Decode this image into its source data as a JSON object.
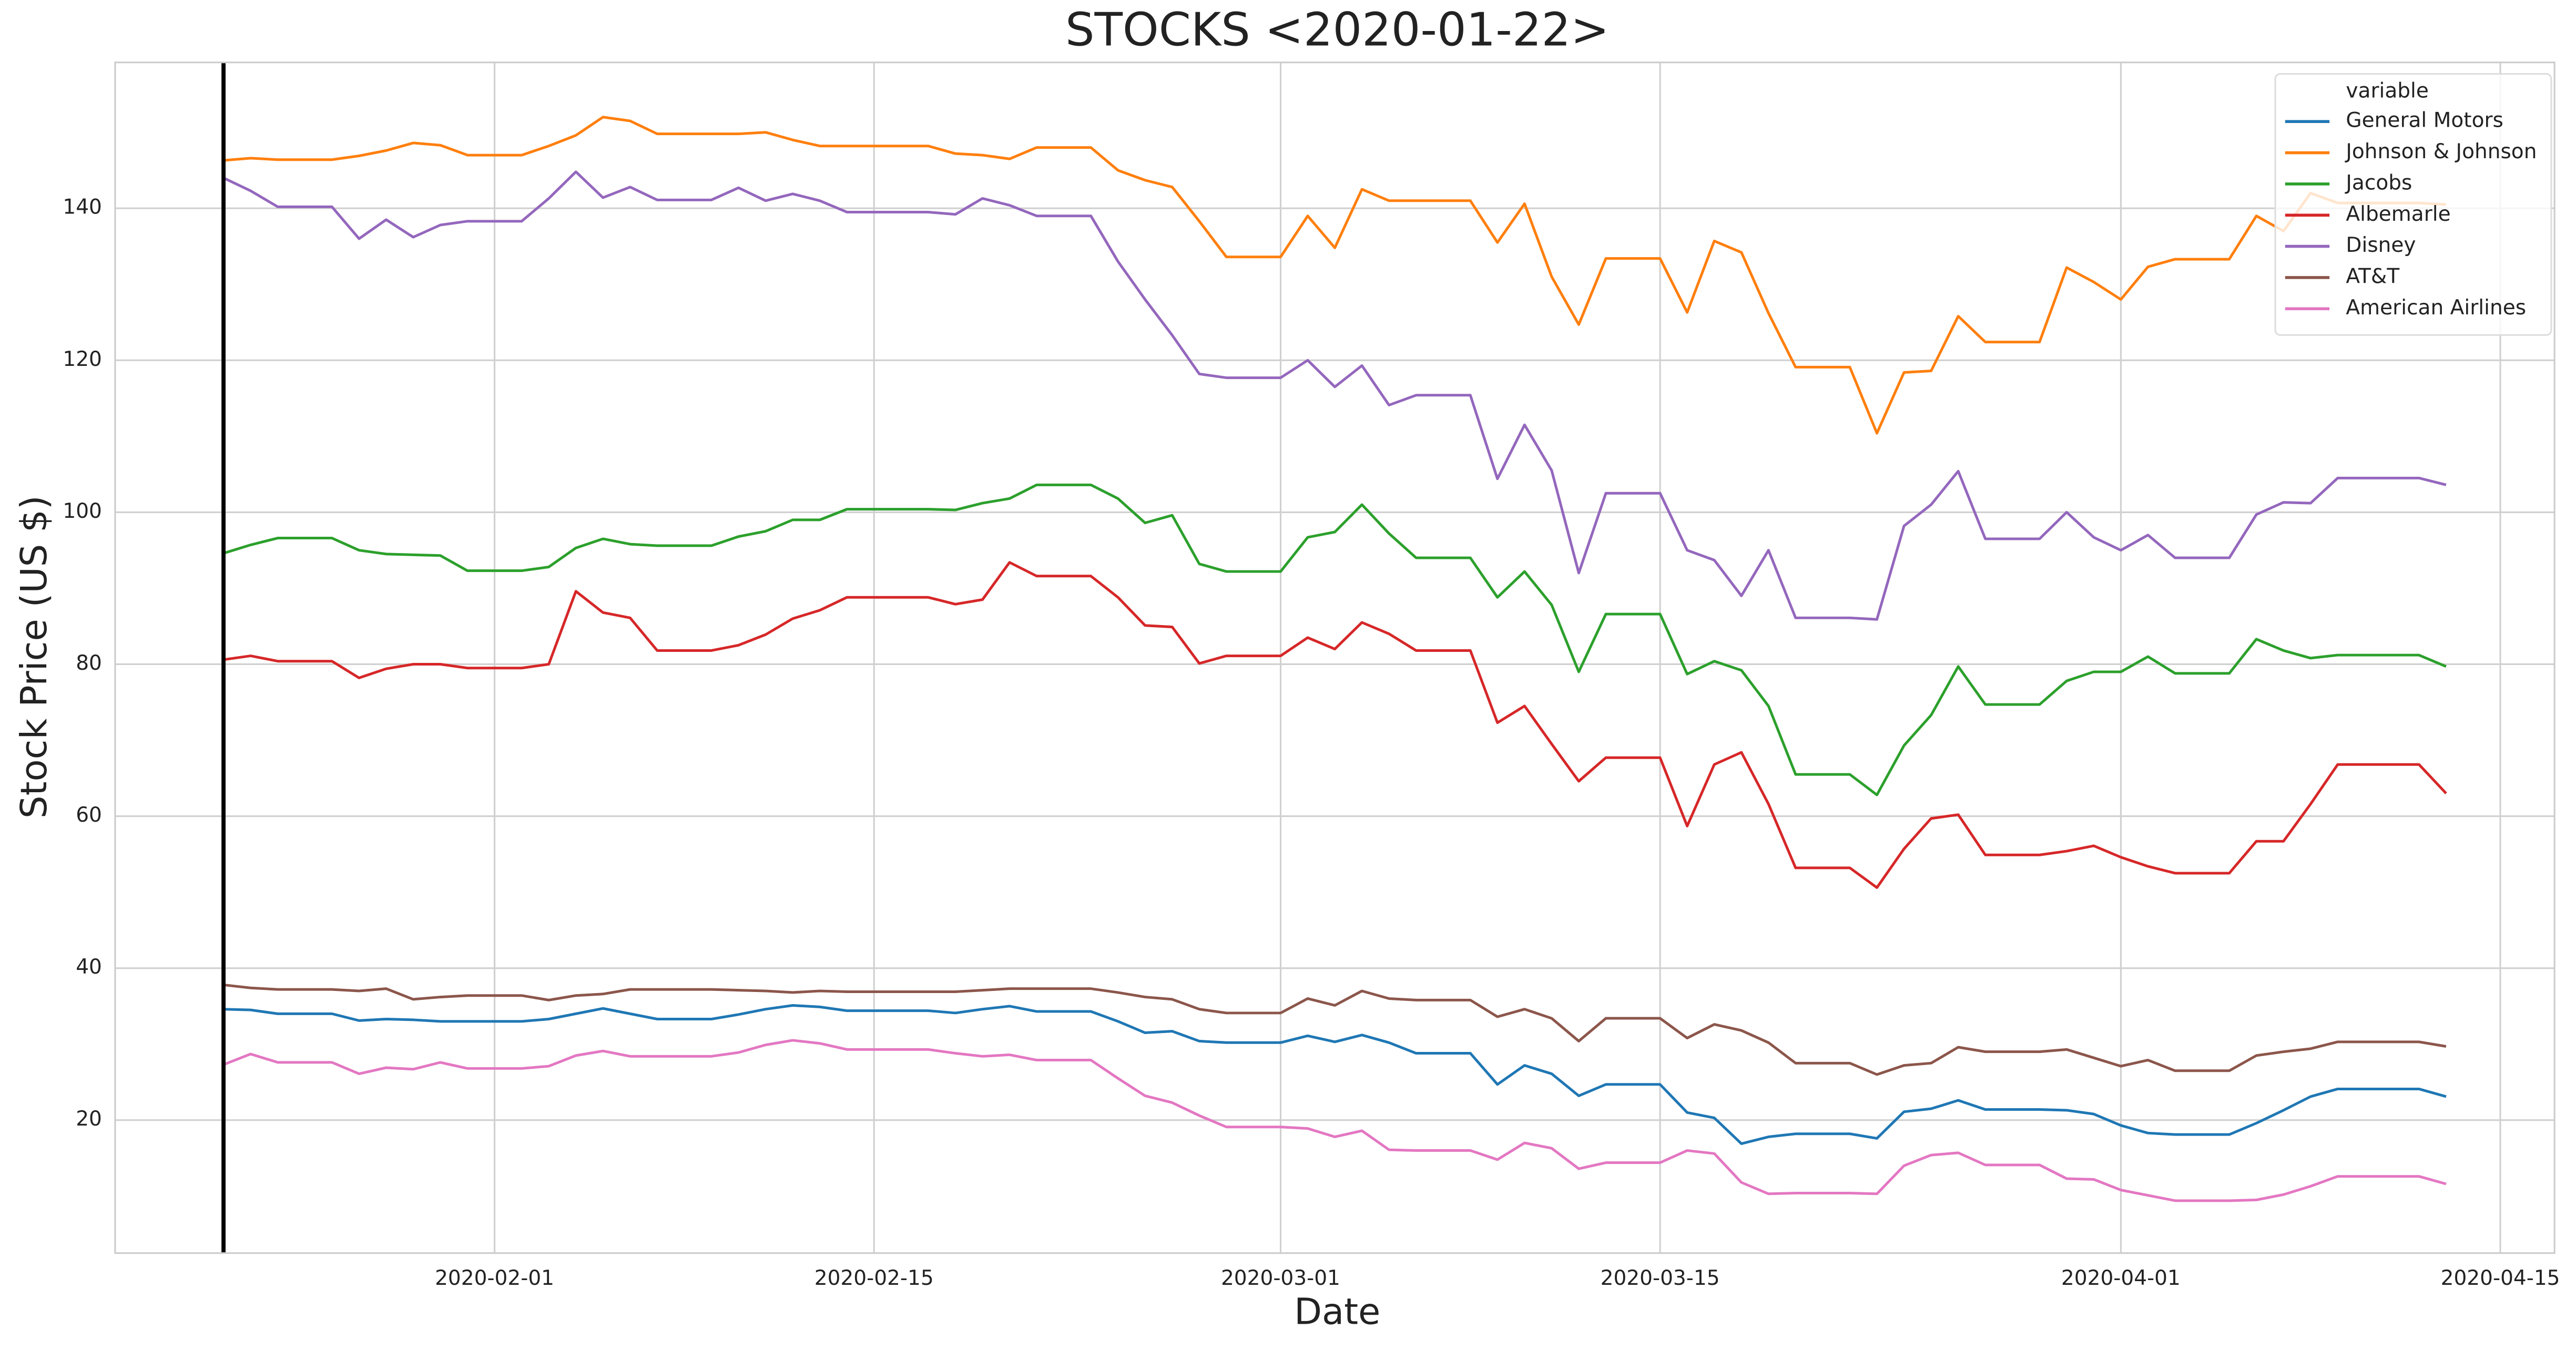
{
  "chart_data": {
    "type": "line",
    "title": "STOCKS <2020-01-22>",
    "xlabel": "Date",
    "ylabel": "Stock Price (US $)",
    "vline": "2020-01-22",
    "legend_title": "variable",
    "legend": "upper right",
    "grid": true,
    "xlim": [
      "2020-01-18",
      "2020-04-17"
    ],
    "xticks": [
      "2020-02-01",
      "2020-02-15",
      "2020-03-01",
      "2020-03-15",
      "2020-04-01",
      "2020-04-15"
    ],
    "ylim": [
      2.5,
      159.2
    ],
    "yticks": [
      20,
      40,
      60,
      80,
      100,
      120,
      140
    ],
    "x": [
      "2020-01-22",
      "2020-01-23",
      "2020-01-24",
      "2020-01-25",
      "2020-01-26",
      "2020-01-27",
      "2020-01-28",
      "2020-01-29",
      "2020-01-30",
      "2020-01-31",
      "2020-02-01",
      "2020-02-02",
      "2020-02-03",
      "2020-02-04",
      "2020-02-05",
      "2020-02-06",
      "2020-02-07",
      "2020-02-08",
      "2020-02-09",
      "2020-02-10",
      "2020-02-11",
      "2020-02-12",
      "2020-02-13",
      "2020-02-14",
      "2020-02-15",
      "2020-02-16",
      "2020-02-17",
      "2020-02-18",
      "2020-02-19",
      "2020-02-20",
      "2020-02-21",
      "2020-02-22",
      "2020-02-23",
      "2020-02-24",
      "2020-02-25",
      "2020-02-26",
      "2020-02-27",
      "2020-02-28",
      "2020-02-29",
      "2020-03-01",
      "2020-03-02",
      "2020-03-03",
      "2020-03-04",
      "2020-03-05",
      "2020-03-06",
      "2020-03-07",
      "2020-03-08",
      "2020-03-09",
      "2020-03-10",
      "2020-03-11",
      "2020-03-12",
      "2020-03-13",
      "2020-03-14",
      "2020-03-15",
      "2020-03-16",
      "2020-03-17",
      "2020-03-18",
      "2020-03-19",
      "2020-03-20",
      "2020-03-21",
      "2020-03-22",
      "2020-03-23",
      "2020-03-24",
      "2020-03-25",
      "2020-03-26",
      "2020-03-27",
      "2020-03-28",
      "2020-03-29",
      "2020-03-30",
      "2020-03-31",
      "2020-04-01",
      "2020-04-02",
      "2020-04-03",
      "2020-04-04",
      "2020-04-05",
      "2020-04-06",
      "2020-04-07",
      "2020-04-08",
      "2020-04-09",
      "2020-04-10",
      "2020-04-11",
      "2020-04-12",
      "2020-04-13"
    ],
    "series": [
      {
        "name": "General Motors",
        "color": "#1f77b4",
        "values": [
          34.6,
          34.5,
          34,
          34,
          34,
          33.1,
          33.3,
          33.2,
          33,
          33,
          33,
          33,
          33.3,
          34,
          34.7,
          34,
          33.3,
          33.3,
          33.3,
          33.9,
          34.6,
          35.1,
          34.9,
          34.4,
          34.4,
          34.4,
          34.4,
          34.1,
          34.6,
          35,
          34.3,
          34.3,
          34.3,
          33,
          31.5,
          31.7,
          30.4,
          30.2,
          30.2,
          30.2,
          31.1,
          30.3,
          31.2,
          30.2,
          28.8,
          28.8,
          28.8,
          24.7,
          27.2,
          26.1,
          23.2,
          24.7,
          24.7,
          24.7,
          21,
          20.3,
          16.9,
          17.8,
          18.2,
          18.2,
          18.2,
          17.6,
          21.1,
          21.5,
          22.6,
          21.4,
          21.4,
          21.4,
          21.3,
          20.8,
          19.3,
          18.3,
          18.1,
          18.1,
          18.1,
          19.6,
          21.3,
          23.1,
          24.1,
          24.1,
          24.1,
          24.1,
          23.1
        ]
      },
      {
        "name": "Johnson & Johnson",
        "color": "#ff7f0e",
        "values": [
          146.3,
          146.6,
          146.4,
          146.4,
          146.4,
          146.9,
          147.6,
          148.6,
          148.3,
          147,
          147,
          147,
          148.2,
          149.6,
          152,
          151.5,
          149.8,
          149.8,
          149.8,
          149.8,
          150,
          149,
          148.2,
          148.2,
          148.2,
          148.2,
          148.2,
          147.2,
          147,
          146.5,
          148,
          148,
          148,
          145,
          143.7,
          142.8,
          138.3,
          133.6,
          133.6,
          133.6,
          139,
          134.8,
          142.5,
          141,
          141,
          141,
          141,
          135.5,
          140.6,
          131,
          124.7,
          133.4,
          133.4,
          133.4,
          126.3,
          135.7,
          134.2,
          126.2,
          119.1,
          119.1,
          119.1,
          110.4,
          118.4,
          118.6,
          125.8,
          122.4,
          122.4,
          122.4,
          132.2,
          130.3,
          128,
          132.3,
          133.3,
          133.3,
          133.3,
          139,
          137,
          142,
          140.7,
          140.7,
          140.7,
          140.7,
          140.5
        ]
      },
      {
        "name": "Jacobs",
        "color": "#2ca02c",
        "values": [
          94.6,
          95.7,
          96.6,
          96.6,
          96.6,
          95,
          94.5,
          94.4,
          94.3,
          92.3,
          92.3,
          92.3,
          92.8,
          95.3,
          96.5,
          95.8,
          95.6,
          95.6,
          95.6,
          96.8,
          97.5,
          99,
          99,
          100.4,
          100.4,
          100.4,
          100.4,
          100.3,
          101.2,
          101.8,
          103.6,
          103.6,
          103.6,
          101.8,
          98.6,
          99.6,
          93.2,
          92.2,
          92.2,
          92.2,
          96.7,
          97.4,
          101,
          97.2,
          94,
          94,
          94,
          88.8,
          92.2,
          87.8,
          79,
          86.6,
          86.6,
          86.6,
          78.7,
          80.4,
          79.2,
          74.5,
          65.5,
          65.5,
          65.5,
          62.8,
          69.3,
          73.3,
          79.7,
          74.7,
          74.7,
          74.7,
          77.8,
          79,
          79,
          81,
          78.8,
          78.8,
          78.8,
          83.3,
          81.8,
          80.8,
          81.2,
          81.2,
          81.2,
          81.2,
          79.7
        ]
      },
      {
        "name": "Albemarle",
        "color": "#d62728",
        "values": [
          80.6,
          81.1,
          80.4,
          80.4,
          80.4,
          78.2,
          79.4,
          80,
          80,
          79.5,
          79.5,
          79.5,
          80,
          89.6,
          86.8,
          86.1,
          81.8,
          81.8,
          81.8,
          82.5,
          83.9,
          86,
          87.1,
          88.8,
          88.8,
          88.8,
          88.8,
          87.9,
          88.5,
          93.4,
          91.6,
          91.6,
          91.6,
          88.8,
          85.1,
          84.9,
          80.1,
          81.1,
          81.1,
          81.1,
          83.5,
          82,
          85.5,
          84,
          81.8,
          81.8,
          81.8,
          72.3,
          74.5,
          69.5,
          64.6,
          67.7,
          67.7,
          67.7,
          58.7,
          66.8,
          68.4,
          61.6,
          53.2,
          53.2,
          53.2,
          50.6,
          55.7,
          59.7,
          60.2,
          54.9,
          54.9,
          54.9,
          55.4,
          56.1,
          54.6,
          53.4,
          52.5,
          52.5,
          52.5,
          56.7,
          56.7,
          61.6,
          66.8,
          66.8,
          66.8,
          66.8,
          63
        ]
      },
      {
        "name": "Disney",
        "color": "#9467bd",
        "values": [
          144,
          142.3,
          140.2,
          140.2,
          140.2,
          136,
          138.5,
          136.2,
          137.8,
          138.3,
          138.3,
          138.3,
          141.3,
          144.8,
          141.4,
          142.8,
          141.1,
          141.1,
          141.1,
          142.7,
          141,
          141.9,
          141,
          139.5,
          139.5,
          139.5,
          139.5,
          139.2,
          141.3,
          140.4,
          139,
          139,
          139,
          133,
          128,
          123.3,
          118.2,
          117.7,
          117.7,
          117.7,
          120,
          116.5,
          119.3,
          114.1,
          115.4,
          115.4,
          115.4,
          104.4,
          111.5,
          105.5,
          92,
          102.5,
          102.5,
          102.5,
          95,
          93.7,
          89,
          95,
          86.1,
          86.1,
          86.1,
          85.9,
          98.2,
          101,
          105.4,
          96.5,
          96.5,
          96.5,
          100,
          96.7,
          95,
          97,
          94,
          94,
          94,
          99.7,
          101.3,
          101.2,
          104.5,
          104.5,
          104.5,
          104.5,
          103.6
        ]
      },
      {
        "name": "AT&T",
        "color": "#8c564b",
        "values": [
          37.8,
          37.4,
          37.2,
          37.2,
          37.2,
          37,
          37.3,
          35.9,
          36.2,
          36.4,
          36.4,
          36.4,
          35.8,
          36.4,
          36.6,
          37.2,
          37.2,
          37.2,
          37.2,
          37.1,
          37,
          36.8,
          37,
          36.9,
          36.9,
          36.9,
          36.9,
          36.9,
          37.1,
          37.3,
          37.3,
          37.3,
          37.3,
          36.8,
          36.2,
          35.9,
          34.6,
          34.1,
          34.1,
          34.1,
          36,
          35.1,
          37,
          36,
          35.8,
          35.8,
          35.8,
          33.6,
          34.6,
          33.4,
          30.4,
          33.4,
          33.4,
          33.4,
          30.8,
          32.6,
          31.8,
          30.2,
          27.5,
          27.5,
          27.5,
          26,
          27.2,
          27.5,
          29.6,
          29,
          29,
          29,
          29.3,
          28.2,
          27.1,
          27.9,
          26.5,
          26.5,
          26.5,
          28.5,
          29,
          29.4,
          30.3,
          30.3,
          30.3,
          30.3,
          29.7
        ]
      },
      {
        "name": "American Airlines",
        "color": "#e377c2",
        "values": [
          27.3,
          28.7,
          27.6,
          27.6,
          27.6,
          26.1,
          26.9,
          26.7,
          27.6,
          26.8,
          26.8,
          26.8,
          27.1,
          28.5,
          29.1,
          28.4,
          28.4,
          28.4,
          28.4,
          28.9,
          29.9,
          30.5,
          30.1,
          29.3,
          29.3,
          29.3,
          29.3,
          28.8,
          28.4,
          28.6,
          27.9,
          27.9,
          27.9,
          25.5,
          23.2,
          22.3,
          20.6,
          19.1,
          19.1,
          19.1,
          18.9,
          17.8,
          18.6,
          16.1,
          16,
          16,
          16,
          14.8,
          17,
          16.3,
          13.6,
          14.4,
          14.4,
          14.4,
          16,
          15.6,
          11.8,
          10.3,
          10.4,
          10.4,
          10.4,
          10.3,
          14,
          15.4,
          15.7,
          14.1,
          14.1,
          14.1,
          12.3,
          12.2,
          10.8,
          10.1,
          9.4,
          9.4,
          9.4,
          9.5,
          10.2,
          11.3,
          12.6,
          12.6,
          12.6,
          12.6,
          11.6
        ]
      }
    ]
  }
}
